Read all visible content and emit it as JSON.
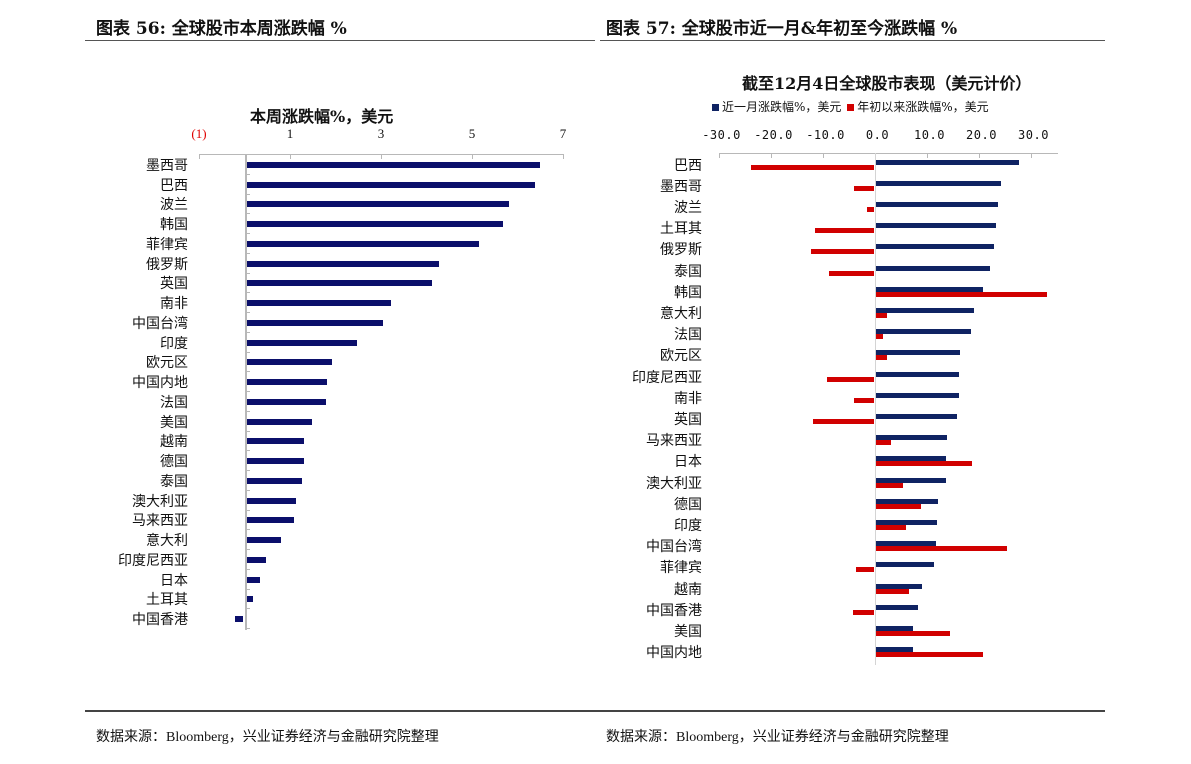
{
  "left": {
    "figure_title": "图表 56:  全球股市本周涨跌幅  %",
    "chart_title": "本周涨跌幅%，美元",
    "source": "数据来源：Bloomberg，兴业证券经济与金融研究院整理"
  },
  "right": {
    "figure_title": "图表 57:  全球股市近一月&年初至今涨跌幅  %",
    "chart_title": "截至12月4日全球股市表现（美元计价）",
    "source": "数据来源：Bloomberg，兴业证券经济与金融研究院整理"
  },
  "chart_data": [
    {
      "type": "bar",
      "orientation": "horizontal",
      "title": "本周涨跌幅%，美元",
      "xlabel": "",
      "ylabel": "",
      "xlim": [
        -1,
        7
      ],
      "x_ticks": [
        "(1)",
        "1",
        "3",
        "5",
        "7"
      ],
      "x_tick_values": [
        -1,
        1,
        3,
        5,
        7
      ],
      "negative_tick_color": "#e00000",
      "axis_position": "top",
      "grid": false,
      "legend": null,
      "categories": [
        "墨西哥",
        "巴西",
        "波兰",
        "韩国",
        "菲律宾",
        "俄罗斯",
        "英国",
        "南非",
        "中国台湾",
        "印度",
        "欧元区",
        "中国内地",
        "法国",
        "美国",
        "越南",
        "德国",
        "泰国",
        "澳大利亚",
        "马来西亚",
        "意大利",
        "印度尼西亚",
        "日本",
        "土耳其",
        "中国香港"
      ],
      "series": [
        {
          "name": "本周涨跌幅%，美元",
          "color": "#0b0f6b",
          "values": [
            6.46,
            6.35,
            5.76,
            5.63,
            5.12,
            4.24,
            4.07,
            3.17,
            3.01,
            2.42,
            1.87,
            1.76,
            1.74,
            1.45,
            1.27,
            1.27,
            1.23,
            1.08,
            1.05,
            0.75,
            0.42,
            0.29,
            0.14,
            -0.2
          ]
        }
      ]
    },
    {
      "type": "bar",
      "orientation": "horizontal",
      "title": "截至12月4日全球股市表现（美元计价）",
      "xlabel": "",
      "ylabel": "",
      "xlim": [
        -30,
        35
      ],
      "x_ticks": [
        "-30.0",
        "-20.0",
        "-10.0",
        "0.0",
        "10.0",
        "20.0",
        "30.0"
      ],
      "x_tick_values": [
        -30,
        -20,
        -10,
        0,
        10,
        20,
        30
      ],
      "axis_position": "top",
      "grid": false,
      "legend_position": "top",
      "categories": [
        "巴西",
        "墨西哥",
        "波兰",
        "土耳其",
        "俄罗斯",
        "泰国",
        "韩国",
        "意大利",
        "法国",
        "欧元区",
        "印度尼西亚",
        "南非",
        "英国",
        "马来西亚",
        "日本",
        "澳大利亚",
        "德国",
        "印度",
        "中国台湾",
        "菲律宾",
        "越南",
        "中国香港",
        "美国",
        "中国内地"
      ],
      "series": [
        {
          "name": "近一月涨跌幅%，美元",
          "color": "#0f2363",
          "values": [
            27.5,
            24.2,
            23.5,
            23.1,
            22.8,
            22.1,
            20.6,
            19.0,
            18.3,
            16.3,
            16.0,
            16.0,
            15.6,
            13.8,
            13.5,
            13.5,
            12.1,
            11.9,
            11.7,
            11.2,
            9.0,
            8.1,
            7.3,
            7.2
          ]
        },
        {
          "name": "年初以来涨跌幅%，美元",
          "color": "#d10000",
          "values": [
            -23.8,
            -4.0,
            -1.4,
            -11.4,
            -12.2,
            -8.8,
            32.9,
            2.3,
            1.5,
            2.3,
            -9.2,
            -4.0,
            -11.9,
            2.9,
            18.5,
            5.2,
            8.8,
            5.8,
            25.2,
            -3.5,
            6.5,
            -4.2,
            14.4,
            20.6
          ]
        }
      ]
    }
  ]
}
